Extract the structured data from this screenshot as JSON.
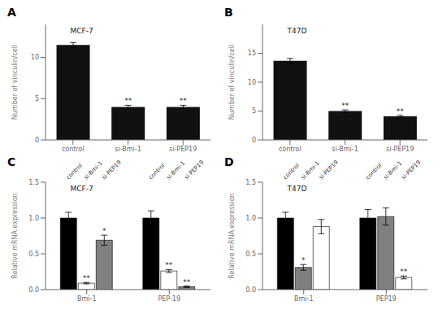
{
  "chart_data": [
    {
      "type": "bar",
      "panel": "A",
      "title": "MCF-7",
      "ylabel": "Number of vinculin/cell",
      "categories": [
        "control",
        "si-Bmi-1",
        "si-PEP19"
      ],
      "values": [
        11.5,
        4.0,
        4.0
      ],
      "errors": [
        0.3,
        0.2,
        0.2
      ],
      "color": "#111111",
      "ylim": [
        0,
        14
      ],
      "yticks": [
        0,
        5,
        10
      ],
      "grid": false,
      "annotations": [
        {
          "category": "si-Bmi-1",
          "text": "**"
        },
        {
          "category": "si-PEP19",
          "text": "**"
        }
      ]
    },
    {
      "type": "bar",
      "panel": "B",
      "title": "T47D",
      "ylabel": "Number of vinculin/cell",
      "categories": [
        "control",
        "si-Bmi-1",
        "si-PEP19"
      ],
      "values": [
        13.7,
        5.0,
        4.1
      ],
      "errors": [
        0.4,
        0.2,
        0.15
      ],
      "color": "#111111",
      "ylim": [
        0,
        20
      ],
      "yticks": [
        0,
        5,
        10,
        15
      ],
      "grid": false,
      "annotations": [
        {
          "category": "si-Bmi-1",
          "text": "**"
        },
        {
          "category": "si-PEP19",
          "text": "**"
        }
      ]
    },
    {
      "type": "bar",
      "panel": "C",
      "title": "MCF-7",
      "ylabel": "Relative mRNA expression",
      "categories": [
        "Bmi-1",
        "PEP-19"
      ],
      "series": [
        {
          "name": "control",
          "color": "black",
          "values": [
            1.0,
            1.0
          ],
          "errors": [
            0.08,
            0.1
          ]
        },
        {
          "name": "si-Bmi-1",
          "color": "white",
          "values": [
            0.09,
            0.26
          ],
          "errors": [
            0.01,
            0.02
          ]
        },
        {
          "name": "si-PEP19",
          "color": "gray",
          "values": [
            0.69,
            0.04
          ],
          "errors": [
            0.07,
            0.01
          ]
        }
      ],
      "ylim": [
        0,
        1.5
      ],
      "yticks": [
        {
          "value": 0,
          "label": "0.0"
        },
        0.5,
        {
          "value": 1.0,
          "label": "1.0"
        },
        1.5
      ],
      "grid": false,
      "annotations": [
        {
          "category": "Bmi-1",
          "series": "si-Bmi-1",
          "text": "**"
        },
        {
          "category": "Bmi-1",
          "series": "si-PEP19",
          "text": "*"
        },
        {
          "category": "PEP-19",
          "series": "si-Bmi-1",
          "text": "**"
        },
        {
          "category": "PEP-19",
          "series": "si-PEP19",
          "text": "**"
        }
      ]
    },
    {
      "type": "bar",
      "panel": "D",
      "title": "T47D",
      "ylabel": "Relative mRNA expression",
      "categories": [
        "Bmi-1",
        "PEP19"
      ],
      "series": [
        {
          "name": "control",
          "color": "black",
          "values": [
            1.0,
            1.0
          ],
          "errors": [
            0.08,
            0.12
          ]
        },
        {
          "name": "si-Bmi-1",
          "color": "gray",
          "values": [
            0.31,
            1.02
          ],
          "errors": [
            0.04,
            0.12
          ]
        },
        {
          "name": "si-PEP19",
          "color": "white",
          "values": [
            0.88,
            0.17
          ],
          "errors": [
            0.1,
            0.02
          ]
        }
      ],
      "ylim": [
        0,
        1.5
      ],
      "yticks": [
        {
          "value": 0,
          "label": "0.0"
        },
        0.5,
        {
          "value": 1.0,
          "label": "1.0"
        },
        1.5
      ],
      "grid": false,
      "annotations": [
        {
          "category": "Bmi-1",
          "series": "si-Bmi-1",
          "text": "*"
        },
        {
          "category": "PEP19",
          "series": "si-PEP19",
          "text": "**"
        }
      ]
    }
  ]
}
